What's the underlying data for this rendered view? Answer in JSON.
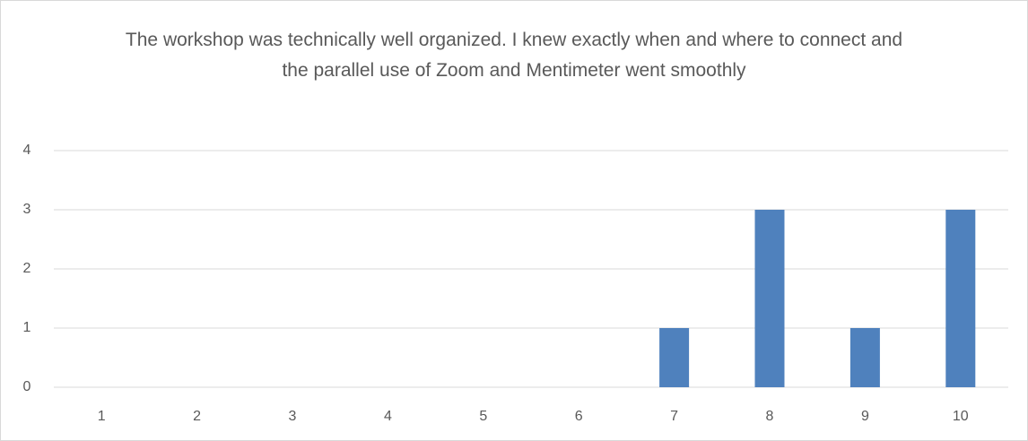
{
  "chart_data": {
    "type": "bar",
    "title": "The workshop was technically well organized. I knew exactly when and where to connect and the parallel use of Zoom and Mentimeter went smoothly",
    "categories": [
      "1",
      "2",
      "3",
      "4",
      "5",
      "6",
      "7",
      "8",
      "9",
      "10"
    ],
    "values": [
      0,
      0,
      0,
      0,
      0,
      0,
      1,
      3,
      1,
      3
    ],
    "color": "#4f81bd",
    "ylim": [
      0,
      4
    ],
    "yticks": [
      0,
      1,
      2,
      3,
      4
    ],
    "grid": true
  }
}
